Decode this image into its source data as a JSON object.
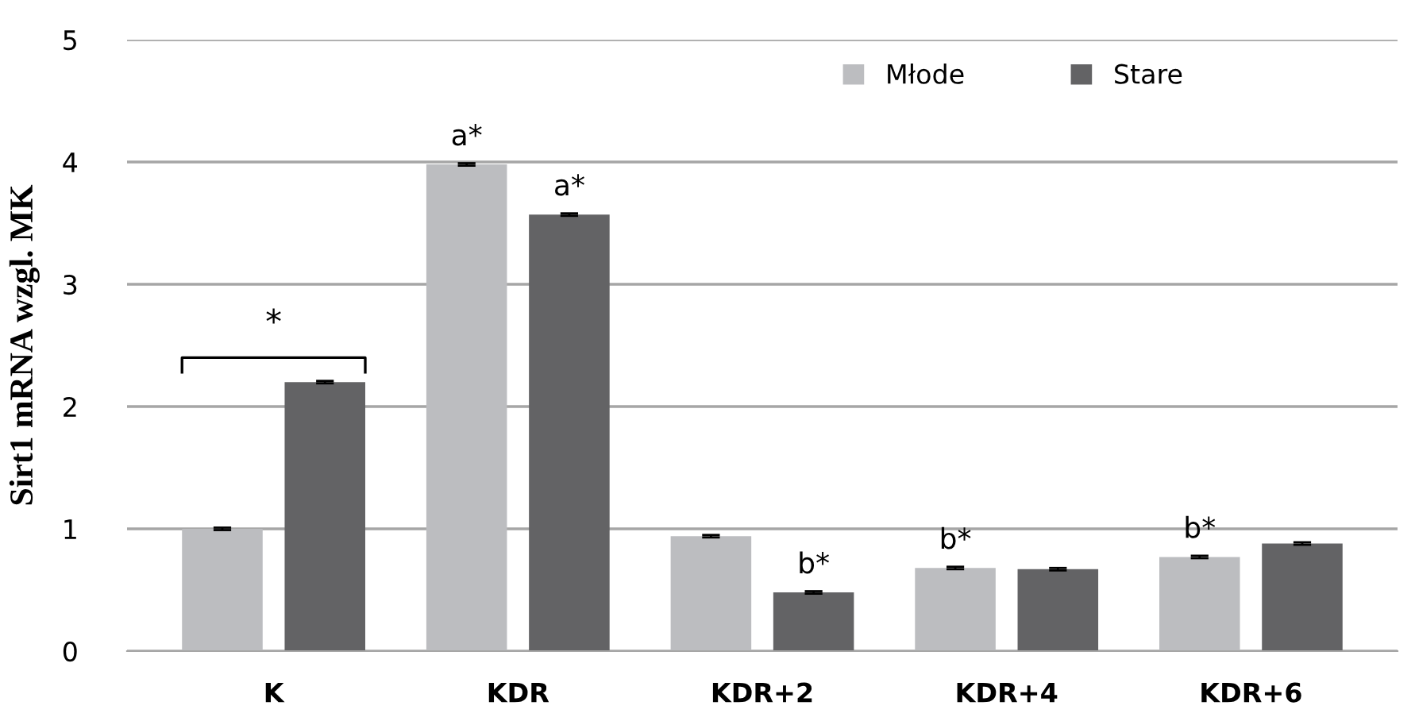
{
  "chart_data": {
    "type": "bar",
    "ylabel": "Sirt1 mRNA wzgl. MK",
    "categories": [
      "K",
      "KDR",
      "KDR+2",
      "KDR+4",
      "KDR+6"
    ],
    "series": [
      {
        "name": "Młode",
        "color": "#bcbdc0",
        "values": [
          1.0,
          3.98,
          0.94,
          0.68,
          0.77
        ],
        "errors": [
          0.01,
          0.01,
          0.01,
          0.01,
          0.01
        ]
      },
      {
        "name": "Stare",
        "color": "#636365",
        "values": [
          2.2,
          3.57,
          0.48,
          0.67,
          0.88
        ],
        "errors": [
          0.01,
          0.01,
          0.01,
          0.01,
          0.01
        ]
      }
    ],
    "ylim": [
      0,
      5
    ],
    "yticks": [
      0,
      1,
      2,
      3,
      4,
      5
    ],
    "grid": "y",
    "legend": "top right",
    "annotations": [
      "*",
      "a*",
      "a*",
      "b*",
      "b*",
      "b*"
    ]
  }
}
